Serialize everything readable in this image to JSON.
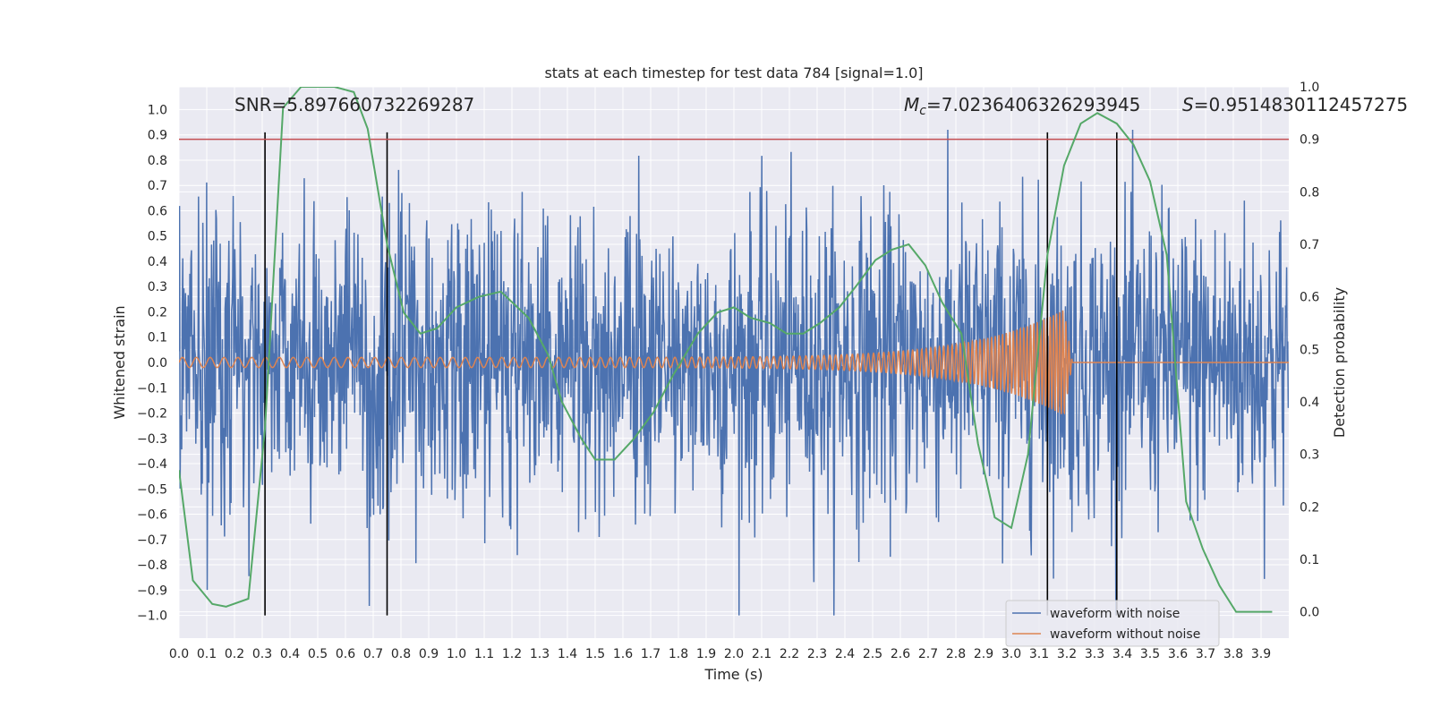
{
  "chart_data": {
    "type": "line",
    "title": "stats at each timestep for test data 784 [signal=1.0]",
    "xlabel": "Time (s)",
    "ylabel": "Whitened strain",
    "y2label": "Detection probability",
    "xlim": [
      0.0,
      4.0
    ],
    "ylim": [
      -1.09,
      1.09
    ],
    "y2lim": [
      -0.05,
      1.0
    ],
    "x_ticks": [
      "0.0",
      "0.1",
      "0.2",
      "0.3",
      "0.4",
      "0.5",
      "0.6",
      "0.7",
      "0.8",
      "0.9",
      "1.0",
      "1.1",
      "1.2",
      "1.3",
      "1.4",
      "1.5",
      "1.6",
      "1.7",
      "1.8",
      "1.9",
      "2.0",
      "2.1",
      "2.2",
      "2.3",
      "2.4",
      "2.5",
      "2.6",
      "2.7",
      "2.8",
      "2.9",
      "3.0",
      "3.1",
      "3.2",
      "3.3",
      "3.4",
      "3.5",
      "3.6",
      "3.7",
      "3.8",
      "3.9"
    ],
    "y_ticks": [
      "1.0",
      "0.9",
      "0.8",
      "0.7",
      "0.6",
      "0.5",
      "0.4",
      "0.3",
      "0.2",
      "0.1",
      "0.0",
      "−0.1",
      "−0.2",
      "−0.3",
      "−0.4",
      "−0.5",
      "−0.6",
      "−0.7",
      "−0.8",
      "−0.9",
      "−1.0"
    ],
    "y2_ticks": [
      "0.0",
      "0.1",
      "0.2",
      "0.3",
      "0.4",
      "0.5",
      "0.6",
      "0.7",
      "0.8",
      "0.9",
      "1.0"
    ],
    "annotations": {
      "snr": "SNR=5.897660732269287",
      "mc_symbol": "M",
      "mc_sub": "c",
      "mc_value": "=7.0236406326293945",
      "s_symbol": "S",
      "s_value": "=0.9514830112457275"
    },
    "vlines_x": [
      0.31,
      0.75,
      3.13,
      3.38
    ],
    "vline_ymax": 0.91,
    "threshold_prob": 0.9,
    "series": [
      {
        "name": "waveform with noise",
        "color": "#4c72b0",
        "amplitude_std": 0.3,
        "max_abs": 1.0,
        "samples": 2048
      },
      {
        "name": "waveform without noise",
        "color": "#dd8452",
        "chirp": {
          "t_start": 0.0,
          "t_merge": 3.19,
          "f_start": 20,
          "f_end": 90,
          "amp_start": 0.02,
          "amp_peak": 0.21,
          "ringdown_end": 3.22
        }
      },
      {
        "name": "detection probability",
        "color": "#55a868",
        "axis": "right",
        "x": [
          0.0,
          0.05,
          0.12,
          0.17,
          0.25,
          0.31,
          0.375,
          0.44,
          0.56,
          0.63,
          0.68,
          0.75,
          0.81,
          0.87,
          0.93,
          1.0,
          1.08,
          1.16,
          1.2,
          1.26,
          1.33,
          1.38,
          1.45,
          1.5,
          1.57,
          1.64,
          1.71,
          1.78,
          1.87,
          1.94,
          2.0,
          2.06,
          2.13,
          2.19,
          2.25,
          2.31,
          2.38,
          2.44,
          2.51,
          2.57,
          2.63,
          2.69,
          2.75,
          2.82,
          2.88,
          2.94,
          3.0,
          3.06,
          3.13,
          3.19,
          3.25,
          3.31,
          3.38,
          3.44,
          3.5,
          3.56,
          3.63,
          3.69,
          3.75,
          3.81,
          3.87,
          3.94
        ],
        "y": [
          0.27,
          0.06,
          0.015,
          0.01,
          0.025,
          0.35,
          0.96,
          1.0,
          1.0,
          0.99,
          0.92,
          0.7,
          0.57,
          0.53,
          0.54,
          0.58,
          0.6,
          0.61,
          0.59,
          0.56,
          0.49,
          0.4,
          0.33,
          0.29,
          0.29,
          0.33,
          0.38,
          0.45,
          0.53,
          0.57,
          0.58,
          0.56,
          0.55,
          0.53,
          0.53,
          0.55,
          0.58,
          0.62,
          0.67,
          0.69,
          0.7,
          0.66,
          0.59,
          0.53,
          0.32,
          0.18,
          0.16,
          0.3,
          0.68,
          0.85,
          0.93,
          0.95,
          0.93,
          0.89,
          0.82,
          0.68,
          0.21,
          0.12,
          0.05,
          0.0,
          0.0,
          0.0
        ]
      }
    ],
    "legend": [
      "waveform with noise",
      "waveform without noise"
    ],
    "legend_loc": "lower-right",
    "grid": true
  }
}
